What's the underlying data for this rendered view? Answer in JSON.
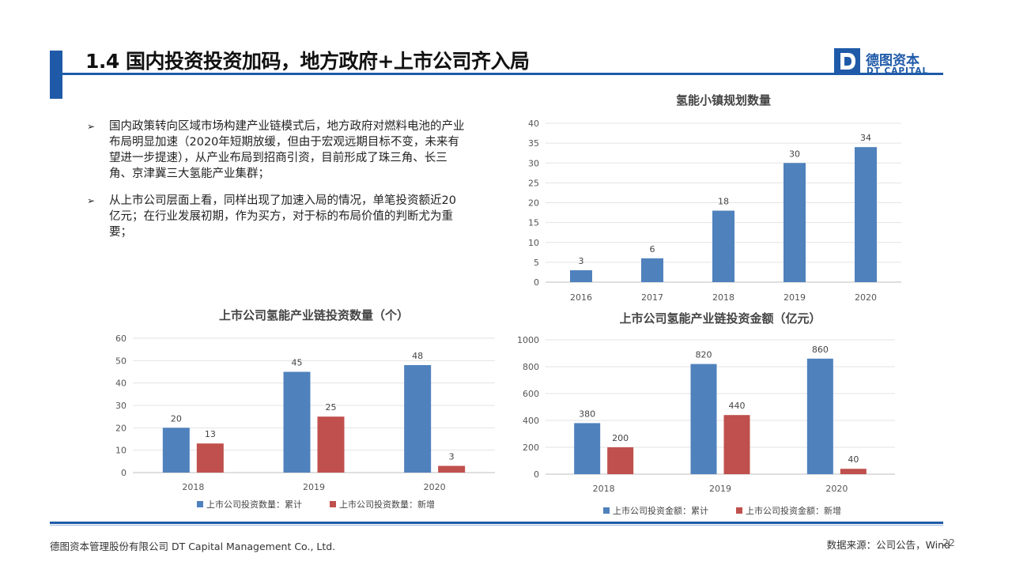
{
  "header": {
    "title": "1.4 国内投资投资加码，地方政府+上市公司齐入局",
    "logo_cn": "德图资本",
    "logo_en": "DT CAPITAL"
  },
  "bullets": [
    {
      "mark": "➢",
      "text": "国内政策转向区域市场构建产业链模式后，地方政府对燃料电池的产业布局明显加速（2020年短期放缓，但由于宏观远期目标不变，未来有望进一步提速），从产业布局到招商引资，目前形成了珠三角、长三角、京津冀三大氢能产业集群；"
    },
    {
      "mark": "➢",
      "text": "从上市公司层面上看，同样出现了加速入局的情况，单笔投资额近20亿元；在行业发展初期，作为买方，对于标的布局价值的判断尤为重要；"
    }
  ],
  "footer": {
    "company": "德图资本管理股份有限公司  DT Capital Management  Co., Ltd.",
    "source": "数据来源：公司公告，Wind",
    "page": "22"
  },
  "colors": {
    "blue": "#4f81bd",
    "red": "#c0504d",
    "brand": "#1f5aa8"
  },
  "chart_data": [
    {
      "type": "bar",
      "title": "氢能小镇规划数量",
      "categories": [
        "2016",
        "2017",
        "2018",
        "2019",
        "2020"
      ],
      "series": [
        {
          "values": [
            3,
            6,
            18,
            30,
            34
          ]
        }
      ],
      "ylim": [
        0,
        40
      ],
      "yticks": [
        0,
        5,
        10,
        15,
        20,
        25,
        30,
        35,
        40
      ],
      "grid": true,
      "legend": "none"
    },
    {
      "type": "bar",
      "title": "上市公司氢能产业链投资数量（个）",
      "categories": [
        "2018",
        "2019",
        "2020"
      ],
      "series": [
        {
          "name": "上市公司投资数量：累计",
          "values": [
            20,
            45,
            48
          ]
        },
        {
          "name": "上市公司投资数量：新增",
          "values": [
            13,
            25,
            3
          ]
        }
      ],
      "ylim": [
        0,
        60
      ],
      "yticks": [
        0,
        10,
        20,
        30,
        40,
        50,
        60
      ],
      "grid": true,
      "legend": "bottom"
    },
    {
      "type": "bar",
      "title": "上市公司氢能产业链投资金额（亿元）",
      "categories": [
        "2018",
        "2019",
        "2020"
      ],
      "series": [
        {
          "name": "上市公司投资金额：累计",
          "values": [
            380,
            820,
            860
          ]
        },
        {
          "name": "上市公司投资金额：新增",
          "values": [
            200,
            440,
            40
          ]
        }
      ],
      "ylim": [
        0,
        1000
      ],
      "yticks": [
        0,
        200,
        400,
        600,
        800,
        1000
      ],
      "grid": true,
      "legend": "bottom"
    }
  ]
}
